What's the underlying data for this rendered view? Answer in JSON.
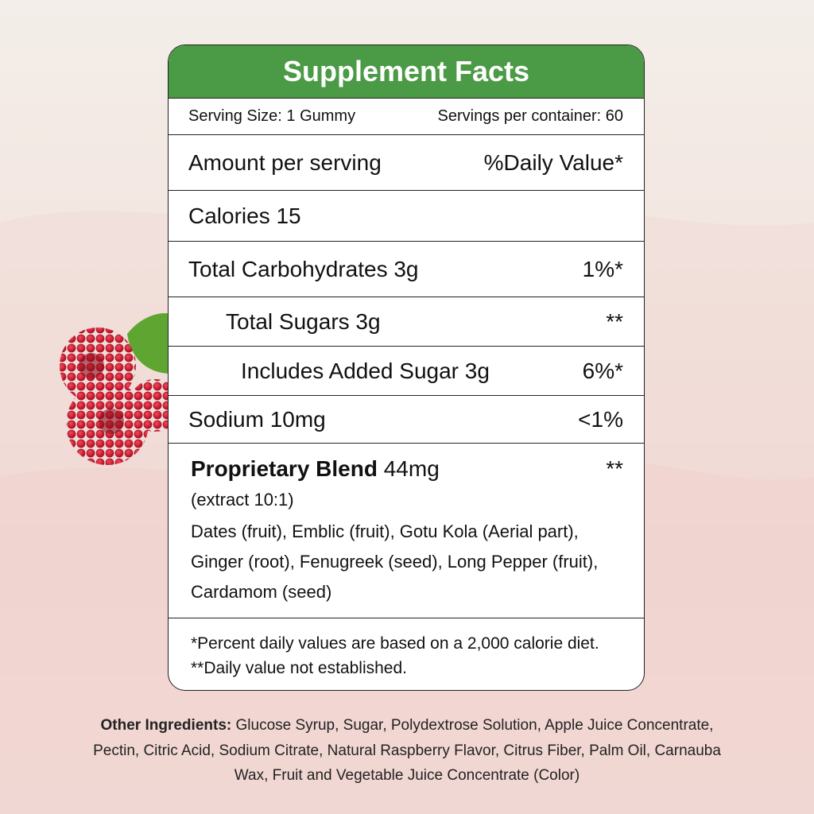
{
  "header": {
    "title": "Supplement Facts"
  },
  "serving": {
    "size": "Serving Size: 1 Gummy",
    "per_container": "Servings per container: 60"
  },
  "columns": {
    "amount": "Amount per serving",
    "daily_value": "%Daily Value*"
  },
  "rows": [
    {
      "label": "Calories 15"
    },
    {
      "label": "Total Carbohydrates 3g",
      "dv": "1%*"
    },
    {
      "label": "Total Sugars 3g",
      "dv": "**"
    },
    {
      "label": "Includes Added Sugar 3g",
      "dv": "6%*"
    },
    {
      "label": "Sodium 10mg",
      "dv": "<1%"
    }
  ],
  "blend": {
    "name": "Proprietary Blend",
    "amount": "44mg",
    "dv": "**",
    "extract": "(extract 10:1)",
    "ingredients": "Dates (fruit), Emblic (fruit), Gotu Kola (Aerial part), Ginger (root), Fenugreek (seed), Long Pepper (fruit), Cardamom (seed)"
  },
  "footnotes": [
    "*Percent daily values are based on a 2,000 calorie diet.",
    "**Daily value not established."
  ],
  "other_ingredients": {
    "label": "Other Ingredients:",
    "text": "Glucose Syrup, Sugar, Polydextrose Solution, Apple Juice Concentrate, Pectin, Citric Acid, Sodium Citrate, Natural Raspberry Flavor, Citrus Fiber, Palm Oil, Carnauba Wax, Fruit and Vegetable Juice Concentrate (Color)"
  }
}
